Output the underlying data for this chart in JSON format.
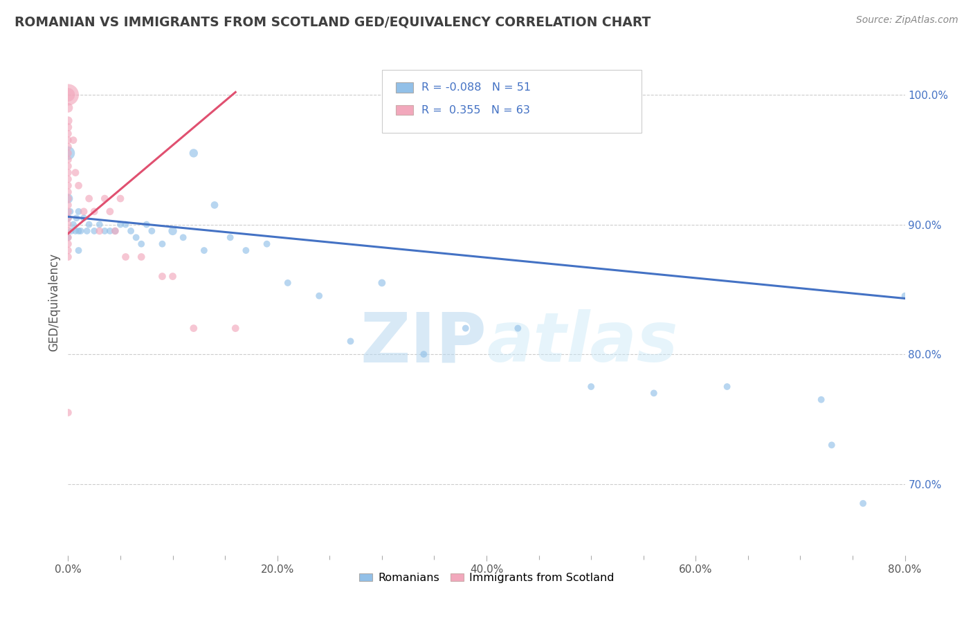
{
  "title": "ROMANIAN VS IMMIGRANTS FROM SCOTLAND GED/EQUIVALENCY CORRELATION CHART",
  "source": "Source: ZipAtlas.com",
  "xlabel_range": [
    0.0,
    0.8
  ],
  "ylabel_range": [
    0.645,
    1.035
  ],
  "blue_R": "-0.088",
  "blue_N": "51",
  "pink_R": "0.355",
  "pink_N": "63",
  "blue_color": "#92C0E8",
  "pink_color": "#F2A8BC",
  "blue_line_color": "#4472C4",
  "pink_line_color": "#E05070",
  "watermark_color": "#C8E4F5",
  "title_color": "#3F3F3F",
  "ylabel": "GED/Equivalency",
  "blue_scatter_x": [
    0.0,
    0.0,
    0.0,
    0.0,
    0.002,
    0.003,
    0.005,
    0.007,
    0.008,
    0.01,
    0.01,
    0.01,
    0.012,
    0.015,
    0.018,
    0.02,
    0.025,
    0.03,
    0.035,
    0.04,
    0.045,
    0.05,
    0.055,
    0.06,
    0.065,
    0.07,
    0.075,
    0.08,
    0.09,
    0.1,
    0.11,
    0.12,
    0.13,
    0.14,
    0.155,
    0.17,
    0.19,
    0.21,
    0.24,
    0.27,
    0.3,
    0.34,
    0.38,
    0.43,
    0.5,
    0.56,
    0.63,
    0.72,
    0.73,
    0.76,
    0.8
  ],
  "blue_scatter_y": [
    0.955,
    0.92,
    0.905,
    0.89,
    0.91,
    0.895,
    0.9,
    0.895,
    0.905,
    0.91,
    0.895,
    0.88,
    0.895,
    0.905,
    0.895,
    0.9,
    0.895,
    0.9,
    0.895,
    0.895,
    0.895,
    0.9,
    0.9,
    0.895,
    0.89,
    0.885,
    0.9,
    0.895,
    0.885,
    0.895,
    0.89,
    0.955,
    0.88,
    0.915,
    0.89,
    0.88,
    0.885,
    0.855,
    0.845,
    0.81,
    0.855,
    0.8,
    0.82,
    0.82,
    0.775,
    0.77,
    0.775,
    0.765,
    0.73,
    0.685,
    0.845
  ],
  "blue_scatter_size": [
    200,
    100,
    60,
    50,
    50,
    50,
    50,
    50,
    50,
    50,
    50,
    50,
    50,
    50,
    50,
    50,
    50,
    50,
    50,
    50,
    50,
    50,
    50,
    50,
    50,
    50,
    50,
    50,
    50,
    80,
    50,
    80,
    50,
    60,
    50,
    50,
    50,
    50,
    50,
    50,
    60,
    50,
    50,
    50,
    50,
    50,
    50,
    50,
    50,
    50,
    50
  ],
  "pink_scatter_x": [
    0.0,
    0.0,
    0.0,
    0.0,
    0.0,
    0.0,
    0.0,
    0.0,
    0.0,
    0.0,
    0.0,
    0.0,
    0.0,
    0.0,
    0.0,
    0.0,
    0.0,
    0.0,
    0.0,
    0.0,
    0.0,
    0.0,
    0.0,
    0.0,
    0.0,
    0.005,
    0.007,
    0.01,
    0.015,
    0.02,
    0.025,
    0.03,
    0.035,
    0.04,
    0.045,
    0.05,
    0.055,
    0.07,
    0.09,
    0.1,
    0.12,
    0.16,
    0.0
  ],
  "pink_scatter_y": [
    1.0,
    1.0,
    0.99,
    0.98,
    0.975,
    0.97,
    0.965,
    0.96,
    0.955,
    0.95,
    0.945,
    0.94,
    0.935,
    0.93,
    0.925,
    0.92,
    0.915,
    0.91,
    0.905,
    0.9,
    0.895,
    0.89,
    0.885,
    0.88,
    0.875,
    0.965,
    0.94,
    0.93,
    0.91,
    0.92,
    0.91,
    0.895,
    0.92,
    0.91,
    0.895,
    0.92,
    0.875,
    0.875,
    0.86,
    0.86,
    0.82,
    0.82,
    0.755
  ],
  "pink_scatter_size": [
    500,
    200,
    100,
    80,
    70,
    60,
    60,
    60,
    60,
    60,
    60,
    60,
    60,
    60,
    60,
    60,
    60,
    60,
    60,
    60,
    60,
    60,
    60,
    60,
    60,
    60,
    60,
    60,
    60,
    60,
    60,
    60,
    60,
    60,
    60,
    60,
    60,
    60,
    60,
    60,
    60,
    60,
    60
  ],
  "blue_trendline_x": [
    0.0,
    0.8
  ],
  "blue_trendline_y": [
    0.906,
    0.843
  ],
  "pink_trendline_x": [
    0.0,
    0.16
  ],
  "pink_trendline_y": [
    0.893,
    1.002
  ],
  "grid_color": "#CCCCCC",
  "bg_color": "#FFFFFF",
  "figsize": [
    14.06,
    8.92
  ],
  "dpi": 100
}
